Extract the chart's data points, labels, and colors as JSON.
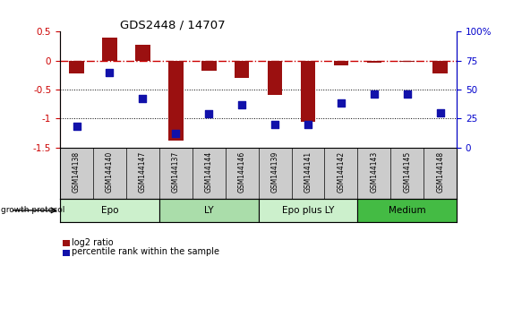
{
  "title": "GDS2448 / 14707",
  "samples": [
    "GSM144138",
    "GSM144140",
    "GSM144147",
    "GSM144137",
    "GSM144144",
    "GSM144146",
    "GSM144139",
    "GSM144141",
    "GSM144142",
    "GSM144143",
    "GSM144145",
    "GSM144148"
  ],
  "log2_ratio": [
    -0.22,
    0.4,
    0.27,
    -1.38,
    -0.18,
    -0.3,
    -0.6,
    -1.05,
    -0.08,
    -0.03,
    -0.02,
    -0.22
  ],
  "percentile_rank": [
    18,
    65,
    42,
    12,
    29,
    37,
    20,
    20,
    38,
    46,
    46,
    30
  ],
  "bar_color": "#9b1010",
  "dot_color": "#1111aa",
  "zero_line_color": "#cc0000",
  "ylim_left": [
    -1.5,
    0.5
  ],
  "ylim_right": [
    0,
    100
  ],
  "yticks_left": [
    -1.5,
    -1.0,
    -0.5,
    0.0,
    0.5
  ],
  "ytick_labels_left": [
    "-1.5",
    "-1",
    "-0.5",
    "0",
    "0.5"
  ],
  "yticks_right": [
    0,
    25,
    50,
    75,
    100
  ],
  "ytick_labels_right": [
    "0",
    "25",
    "50",
    "75",
    "100%"
  ],
  "hlines": [
    -0.5,
    -1.0
  ],
  "groups": [
    {
      "label": "Epo",
      "start": 0,
      "end": 3,
      "color": "#ccf0cc"
    },
    {
      "label": "LY",
      "start": 3,
      "end": 6,
      "color": "#aaddaa"
    },
    {
      "label": "Epo plus LY",
      "start": 6,
      "end": 9,
      "color": "#ccf0cc"
    },
    {
      "label": "Medium",
      "start": 9,
      "end": 12,
      "color": "#44bb44"
    }
  ],
  "growth_protocol_label": "growth protocol",
  "legend_log2": "log2 ratio",
  "legend_pct": "percentile rank within the sample",
  "background_color": "#ffffff",
  "tick_color_left": "#cc0000",
  "tick_color_right": "#0000cc",
  "label_bg": "#cccccc"
}
